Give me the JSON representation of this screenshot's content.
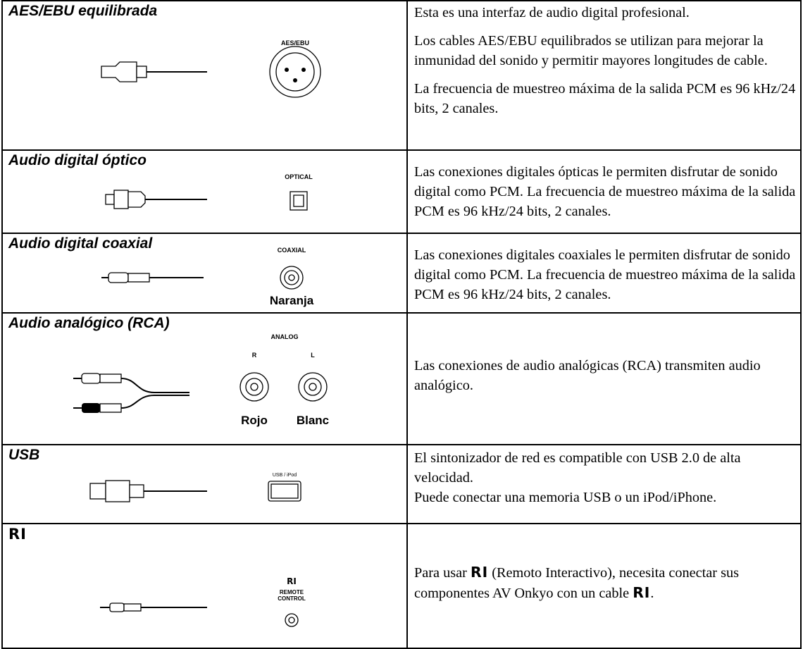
{
  "rows": [
    {
      "title": "AES/EBU equilibrada",
      "connector_label": "AES/EBU",
      "description": [
        "Esta es una interfaz de audio digital profesional.",
        "Los cables AES/EBU equilibrados se utilizan para mejorar la inmunidad del sonido y permitir mayores longitudes de cable.",
        "La frecuencia de muestreo máxima de la salida PCM es 96 kHz/24 bits, 2 canales."
      ]
    },
    {
      "title": "Audio digital óptico",
      "connector_label": "OPTICAL",
      "description": [
        "Las conexiones digitales ópticas le permiten disfrutar de sonido digital como PCM. La frecuencia de muestreo máxima de la salida PCM es 96 kHz/24 bits, 2 canales."
      ]
    },
    {
      "title": "Audio digital coaxial",
      "connector_label": "COAXIAL",
      "color_labels": [
        "Naranja"
      ],
      "description": [
        "Las conexiones digitales coaxiales le permiten disfrutar de sonido digital como PCM. La frecuencia de muestreo máxima de la salida PCM es 96 kHz/24 bits, 2 canales."
      ]
    },
    {
      "title": "Audio analógico (RCA)",
      "connector_label": "ANALOG",
      "channel_labels": [
        "R",
        "L"
      ],
      "color_labels": [
        "Rojo",
        "Blanc"
      ],
      "description": [
        "Las conexiones de audio analógicas (RCA) transmiten audio analógico."
      ]
    },
    {
      "title": "USB",
      "connector_label": "USB / iPod",
      "description": [
        "El sintonizador de red es compatible con USB 2.0 de alta velocidad.",
        "Puede conectar una memoria USB o un iPod/iPhone."
      ]
    },
    {
      "title": "RI",
      "connector_label": [
        "RI",
        "REMOTE",
        "CONTROL"
      ],
      "description": [
        [
          "Para usar ",
          "RI",
          " (Remoto Interactivo), necesita conectar sus componentes AV Onkyo con un cable ",
          "RI",
          "."
        ]
      ]
    }
  ]
}
